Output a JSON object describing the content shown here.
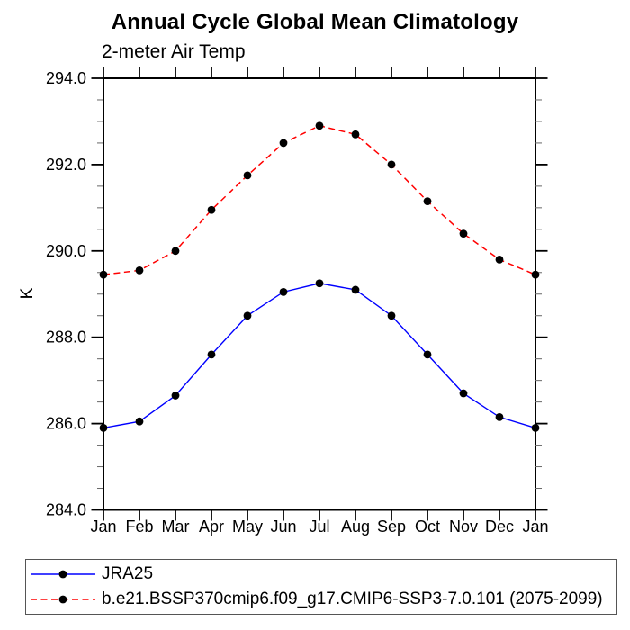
{
  "chart_data": {
    "type": "line",
    "title": "Annual Cycle Global Mean Climatology",
    "subtitle": "2-meter Air Temp",
    "ylabel": "K",
    "xlabel": "",
    "ylim": [
      284.0,
      294.0
    ],
    "y_ticks": [
      {
        "v": 294,
        "label": "294.0"
      },
      {
        "v": 292,
        "label": "292.0"
      },
      {
        "v": 290,
        "label": "290.0"
      },
      {
        "v": 288,
        "label": "288.0"
      },
      {
        "v": 286,
        "label": "286.0"
      },
      {
        "v": 284,
        "label": "284.0"
      }
    ],
    "y_minor_step": 0.5,
    "x_tick_labels": [
      "Jan",
      "Feb",
      "Mar",
      "Apr",
      "May",
      "Jun",
      "Jul",
      "Aug",
      "Sep",
      "Oct",
      "Nov",
      "Dec",
      "Jan"
    ],
    "grid": false,
    "legend_position": "bottom-left",
    "marker_color": "#000000",
    "frame_color": "#000000",
    "minor_tick_color": "#666666",
    "series": [
      {
        "name": "JRA25",
        "color": "#0000ff",
        "style": "solid",
        "values": [
          285.9,
          286.05,
          286.65,
          287.6,
          288.5,
          289.05,
          289.25,
          289.1,
          288.5,
          287.6,
          286.7,
          286.15,
          285.9
        ]
      },
      {
        "name": "b.e21.BSSP370cmip6.f09_g17.CMIP6-SSP3-7.0.101 (2075-2099)",
        "color": "#ff0000",
        "style": "dashed",
        "values": [
          289.45,
          289.55,
          290.0,
          290.95,
          291.75,
          292.5,
          292.9,
          292.7,
          292.0,
          291.15,
          290.4,
          289.8,
          289.45
        ]
      }
    ]
  }
}
